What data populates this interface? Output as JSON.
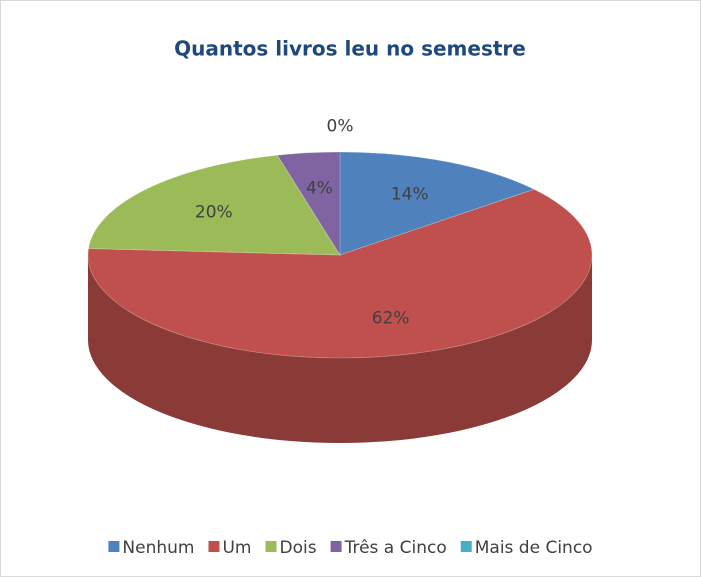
{
  "chart_data": {
    "type": "pie",
    "title": "Quantos livros leu no semestre",
    "categories": [
      "Nenhum",
      "Um",
      "Dois",
      "Três a Cinco",
      "Mais de Cinco"
    ],
    "values": [
      14,
      62,
      20,
      4,
      0
    ],
    "value_labels": [
      "14%",
      "62%",
      "20%",
      "4%",
      "0%"
    ],
    "colors": [
      "#4f81bd",
      "#c0504d",
      "#9bbb59",
      "#8064a2",
      "#4bacc6"
    ],
    "legend": "bottom"
  }
}
